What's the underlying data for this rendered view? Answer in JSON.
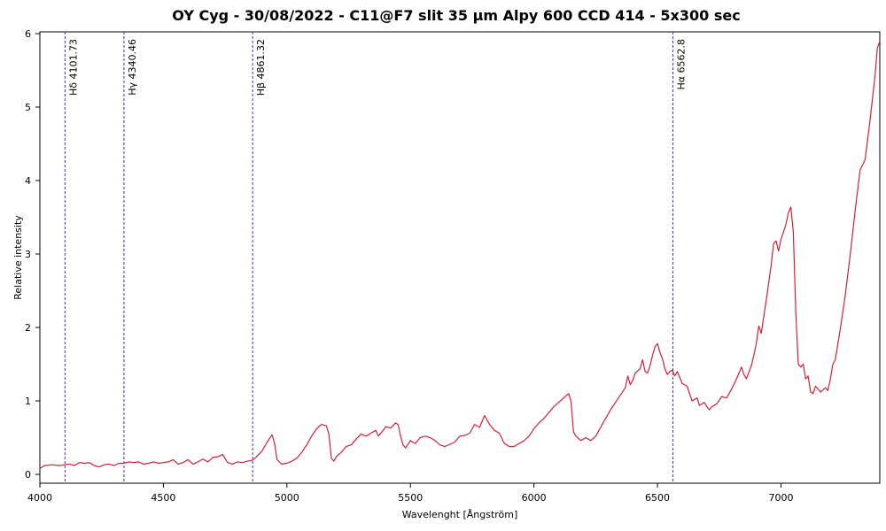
{
  "chart_data": {
    "type": "line",
    "title": "OY Cyg - 30/08/2022 - C11@F7 slit 35 µm Alpy 600 CCD 414 - 5x300 sec",
    "xlabel": "Wavelenght [Ångström]",
    "ylabel": "Relative intensity",
    "xlim": [
      4000,
      7400
    ],
    "ylim": [
      0,
      6
    ],
    "x_ticks": [
      4000,
      4500,
      5000,
      5500,
      6000,
      6500,
      7000
    ],
    "y_ticks": [
      0,
      1,
      2,
      3,
      4,
      5,
      6
    ],
    "grid": false,
    "colors": {
      "series": "#d0213c",
      "reference_lines": "#3333cc"
    },
    "reference_lines": [
      {
        "label": "Hδ  4101.73",
        "x": 4101.73
      },
      {
        "label": "Hγ  4340.46",
        "x": 4340.46
      },
      {
        "label": "Hβ  4861.32",
        "x": 4861.32
      },
      {
        "label": "Hα  6562.8",
        "x": 6562.8
      }
    ],
    "series": [
      {
        "points": [
          [
            4000,
            0.08
          ],
          [
            4020,
            0.12
          ],
          [
            4050,
            0.13
          ],
          [
            4080,
            0.12
          ],
          [
            4100,
            0.13
          ],
          [
            4120,
            0.14
          ],
          [
            4140,
            0.12
          ],
          [
            4160,
            0.16
          ],
          [
            4180,
            0.15
          ],
          [
            4200,
            0.16
          ],
          [
            4220,
            0.12
          ],
          [
            4240,
            0.1
          ],
          [
            4260,
            0.13
          ],
          [
            4280,
            0.14
          ],
          [
            4300,
            0.12
          ],
          [
            4320,
            0.15
          ],
          [
            4340,
            0.15
          ],
          [
            4360,
            0.17
          ],
          [
            4380,
            0.16
          ],
          [
            4400,
            0.17
          ],
          [
            4420,
            0.14
          ],
          [
            4440,
            0.15
          ],
          [
            4460,
            0.17
          ],
          [
            4480,
            0.15
          ],
          [
            4500,
            0.16
          ],
          [
            4520,
            0.17
          ],
          [
            4540,
            0.2
          ],
          [
            4560,
            0.14
          ],
          [
            4580,
            0.16
          ],
          [
            4600,
            0.2
          ],
          [
            4620,
            0.14
          ],
          [
            4640,
            0.17
          ],
          [
            4660,
            0.21
          ],
          [
            4680,
            0.17
          ],
          [
            4700,
            0.23
          ],
          [
            4720,
            0.24
          ],
          [
            4740,
            0.27
          ],
          [
            4760,
            0.16
          ],
          [
            4780,
            0.14
          ],
          [
            4800,
            0.17
          ],
          [
            4820,
            0.16
          ],
          [
            4840,
            0.18
          ],
          [
            4860,
            0.19
          ],
          [
            4880,
            0.25
          ],
          [
            4900,
            0.32
          ],
          [
            4920,
            0.44
          ],
          [
            4940,
            0.54
          ],
          [
            4950,
            0.42
          ],
          [
            4960,
            0.2
          ],
          [
            4980,
            0.14
          ],
          [
            5000,
            0.15
          ],
          [
            5020,
            0.18
          ],
          [
            5040,
            0.22
          ],
          [
            5060,
            0.3
          ],
          [
            5080,
            0.4
          ],
          [
            5100,
            0.52
          ],
          [
            5120,
            0.62
          ],
          [
            5140,
            0.68
          ],
          [
            5160,
            0.66
          ],
          [
            5170,
            0.55
          ],
          [
            5180,
            0.22
          ],
          [
            5190,
            0.18
          ],
          [
            5200,
            0.24
          ],
          [
            5220,
            0.3
          ],
          [
            5240,
            0.38
          ],
          [
            5260,
            0.4
          ],
          [
            5280,
            0.48
          ],
          [
            5300,
            0.55
          ],
          [
            5320,
            0.52
          ],
          [
            5340,
            0.56
          ],
          [
            5360,
            0.6
          ],
          [
            5370,
            0.52
          ],
          [
            5390,
            0.6
          ],
          [
            5400,
            0.65
          ],
          [
            5420,
            0.63
          ],
          [
            5440,
            0.7
          ],
          [
            5450,
            0.68
          ],
          [
            5460,
            0.52
          ],
          [
            5470,
            0.4
          ],
          [
            5480,
            0.36
          ],
          [
            5500,
            0.46
          ],
          [
            5520,
            0.42
          ],
          [
            5540,
            0.5
          ],
          [
            5560,
            0.52
          ],
          [
            5580,
            0.5
          ],
          [
            5600,
            0.46
          ],
          [
            5620,
            0.4
          ],
          [
            5640,
            0.38
          ],
          [
            5660,
            0.41
          ],
          [
            5680,
            0.44
          ],
          [
            5700,
            0.52
          ],
          [
            5720,
            0.53
          ],
          [
            5740,
            0.56
          ],
          [
            5760,
            0.68
          ],
          [
            5780,
            0.64
          ],
          [
            5800,
            0.8
          ],
          [
            5820,
            0.68
          ],
          [
            5840,
            0.6
          ],
          [
            5860,
            0.56
          ],
          [
            5880,
            0.42
          ],
          [
            5900,
            0.38
          ],
          [
            5920,
            0.38
          ],
          [
            5940,
            0.42
          ],
          [
            5960,
            0.46
          ],
          [
            5980,
            0.52
          ],
          [
            6000,
            0.62
          ],
          [
            6020,
            0.7
          ],
          [
            6040,
            0.76
          ],
          [
            6060,
            0.84
          ],
          [
            6080,
            0.92
          ],
          [
            6100,
            0.98
          ],
          [
            6120,
            1.04
          ],
          [
            6140,
            1.1
          ],
          [
            6150,
            1.0
          ],
          [
            6160,
            0.58
          ],
          [
            6170,
            0.52
          ],
          [
            6190,
            0.46
          ],
          [
            6210,
            0.5
          ],
          [
            6230,
            0.46
          ],
          [
            6250,
            0.52
          ],
          [
            6270,
            0.64
          ],
          [
            6290,
            0.76
          ],
          [
            6310,
            0.88
          ],
          [
            6330,
            0.98
          ],
          [
            6350,
            1.08
          ],
          [
            6370,
            1.18
          ],
          [
            6380,
            1.34
          ],
          [
            6390,
            1.22
          ],
          [
            6400,
            1.28
          ],
          [
            6410,
            1.38
          ],
          [
            6430,
            1.44
          ],
          [
            6440,
            1.56
          ],
          [
            6450,
            1.4
          ],
          [
            6460,
            1.38
          ],
          [
            6470,
            1.48
          ],
          [
            6480,
            1.62
          ],
          [
            6490,
            1.74
          ],
          [
            6500,
            1.78
          ],
          [
            6510,
            1.66
          ],
          [
            6520,
            1.58
          ],
          [
            6530,
            1.44
          ],
          [
            6540,
            1.36
          ],
          [
            6550,
            1.4
          ],
          [
            6560,
            1.42
          ],
          [
            6570,
            1.34
          ],
          [
            6580,
            1.4
          ],
          [
            6590,
            1.32
          ],
          [
            6600,
            1.24
          ],
          [
            6620,
            1.2
          ],
          [
            6640,
            1.0
          ],
          [
            6660,
            1.04
          ],
          [
            6670,
            0.94
          ],
          [
            6690,
            0.98
          ],
          [
            6700,
            0.92
          ],
          [
            6710,
            0.88
          ],
          [
            6720,
            0.92
          ],
          [
            6740,
            0.96
          ],
          [
            6760,
            1.06
          ],
          [
            6780,
            1.04
          ],
          [
            6800,
            1.16
          ],
          [
            6820,
            1.3
          ],
          [
            6840,
            1.46
          ],
          [
            6850,
            1.36
          ],
          [
            6860,
            1.3
          ],
          [
            6880,
            1.48
          ],
          [
            6890,
            1.62
          ],
          [
            6900,
            1.78
          ],
          [
            6910,
            2.02
          ],
          [
            6920,
            1.92
          ],
          [
            6940,
            2.36
          ],
          [
            6960,
            2.84
          ],
          [
            6970,
            3.14
          ],
          [
            6980,
            3.18
          ],
          [
            6990,
            3.04
          ],
          [
            7000,
            3.2
          ],
          [
            7020,
            3.4
          ],
          [
            7030,
            3.56
          ],
          [
            7040,
            3.64
          ],
          [
            7050,
            3.3
          ],
          [
            7060,
            2.2
          ],
          [
            7070,
            1.5
          ],
          [
            7080,
            1.46
          ],
          [
            7090,
            1.5
          ],
          [
            7100,
            1.3
          ],
          [
            7110,
            1.34
          ],
          [
            7120,
            1.12
          ],
          [
            7130,
            1.1
          ],
          [
            7140,
            1.2
          ],
          [
            7160,
            1.12
          ],
          [
            7180,
            1.18
          ],
          [
            7190,
            1.14
          ],
          [
            7200,
            1.3
          ],
          [
            7210,
            1.5
          ],
          [
            7220,
            1.56
          ],
          [
            7240,
            1.98
          ],
          [
            7260,
            2.44
          ],
          [
            7280,
            2.98
          ],
          [
            7300,
            3.58
          ],
          [
            7320,
            4.14
          ],
          [
            7340,
            4.28
          ],
          [
            7360,
            4.8
          ],
          [
            7380,
            5.4
          ],
          [
            7390,
            5.8
          ],
          [
            7400,
            5.9
          ]
        ]
      }
    ]
  }
}
